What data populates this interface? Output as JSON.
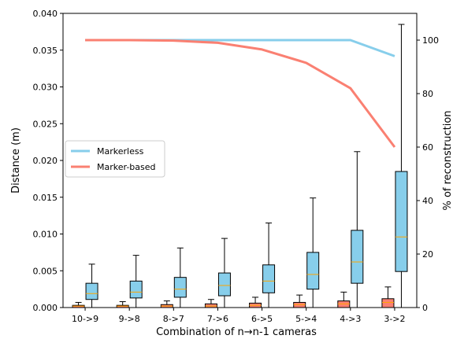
{
  "chart_data": {
    "type": "boxplot+line",
    "title": "",
    "xlabel": "Combination of n→n-1 cameras",
    "ylabel_left": "Distance (m)",
    "ylabel_right": "% of reconstruction",
    "ylim_left": [
      0,
      0.04
    ],
    "ylim_right": [
      0,
      110
    ],
    "yticks_left": [
      0,
      0.005,
      0.01,
      0.015,
      0.02,
      0.025,
      0.03,
      0.035,
      0.04
    ],
    "yticks_left_labels": [
      "0.000",
      "0.005",
      "0.010",
      "0.015",
      "0.020",
      "0.025",
      "0.030",
      "0.035",
      "0.040"
    ],
    "yticks_right": [
      0,
      20,
      40,
      60,
      80,
      100
    ],
    "yticks_right_labels": [
      "0",
      "20",
      "40",
      "60",
      "80",
      "100"
    ],
    "categories": [
      "10->9",
      "9->8",
      "8->7",
      "7->6",
      "6->5",
      "5->4",
      "4->3",
      "3->2"
    ],
    "legend_position": "center-left",
    "grid": false,
    "series": [
      {
        "name": "Markerless",
        "color": "#87CEEB",
        "line_values": [
          100,
          100,
          100,
          100,
          100,
          100,
          100,
          94
        ],
        "boxes": [
          {
            "whislo": 0.0,
            "q1": 0.0011,
            "med": 0.0019,
            "q3": 0.0033,
            "whishi": 0.0059
          },
          {
            "whislo": 0.0,
            "q1": 0.0013,
            "med": 0.0021,
            "q3": 0.0036,
            "whishi": 0.0071
          },
          {
            "whislo": 0.0,
            "q1": 0.0014,
            "med": 0.0025,
            "q3": 0.0041,
            "whishi": 0.0081
          },
          {
            "whislo": 0.0,
            "q1": 0.0016,
            "med": 0.003,
            "q3": 0.0047,
            "whishi": 0.0094
          },
          {
            "whislo": 0.0,
            "q1": 0.002,
            "med": 0.0036,
            "q3": 0.0058,
            "whishi": 0.0115
          },
          {
            "whislo": 0.0,
            "q1": 0.0025,
            "med": 0.0045,
            "q3": 0.0075,
            "whishi": 0.0149
          },
          {
            "whislo": 0.0,
            "q1": 0.0033,
            "med": 0.0062,
            "q3": 0.0105,
            "whishi": 0.0212
          },
          {
            "whislo": 0.0,
            "q1": 0.0049,
            "med": 0.0096,
            "q3": 0.0185,
            "whishi": 0.0385
          }
        ]
      },
      {
        "name": "Marker-based",
        "color": "#FA8072",
        "line_values": [
          100,
          100,
          99.8,
          99,
          96.5,
          91.5,
          82,
          60
        ],
        "boxes": [
          {
            "whislo": 0.0,
            "q1": 0.0,
            "med": 0.0002,
            "q3": 0.0003,
            "whishi": 0.0007
          },
          {
            "whislo": 0.0,
            "q1": 0.0,
            "med": 0.0002,
            "q3": 0.0003,
            "whishi": 0.0008
          },
          {
            "whislo": 0.0,
            "q1": 0.0,
            "med": 0.0002,
            "q3": 0.0004,
            "whishi": 0.0009
          },
          {
            "whislo": 0.0,
            "q1": 0.0,
            "med": 0.0002,
            "q3": 0.0005,
            "whishi": 0.0011
          },
          {
            "whislo": 0.0,
            "q1": 0.0,
            "med": 0.0003,
            "q3": 0.0006,
            "whishi": 0.0014
          },
          {
            "whislo": 0.0,
            "q1": 0.0,
            "med": 0.0004,
            "q3": 0.0007,
            "whishi": 0.0017
          },
          {
            "whislo": 0.0,
            "q1": 0.0,
            "med": 0.0005,
            "q3": 0.0009,
            "whishi": 0.0021
          },
          {
            "whislo": 0.0,
            "q1": 0.0,
            "med": 0.0007,
            "q3": 0.0012,
            "whishi": 0.0028
          }
        ]
      }
    ],
    "median_color": "#FFA500"
  }
}
